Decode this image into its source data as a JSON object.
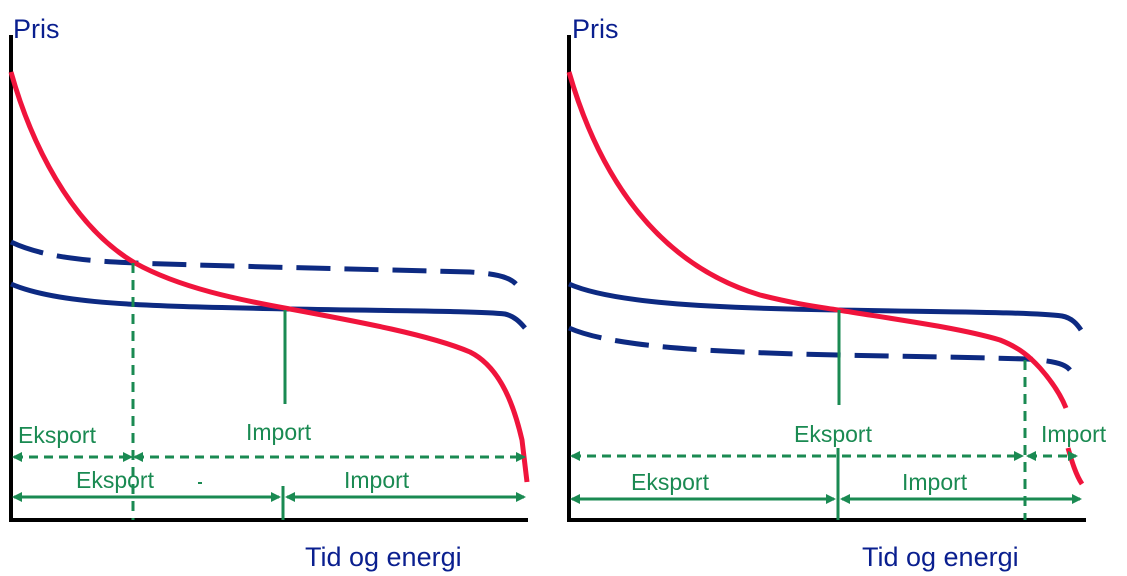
{
  "colors": {
    "axis": "#000000",
    "axis_text": "#0a1f8f",
    "red_curve": "#f0143c",
    "blue_curve": "#0d2a82",
    "green": "#1a8a52"
  },
  "panels": [
    {
      "y_label": "Pris",
      "x_label": "Tid og energi",
      "dashed_labels": [
        "Eksport",
        "Import"
      ],
      "solid_labels": [
        "Eksport",
        "Import"
      ]
    },
    {
      "y_label": "Pris",
      "x_label": "Tid og energi",
      "dashed_labels": [
        "Eksport",
        "Import"
      ],
      "solid_labels": [
        "Eksport",
        "Import"
      ]
    }
  ]
}
